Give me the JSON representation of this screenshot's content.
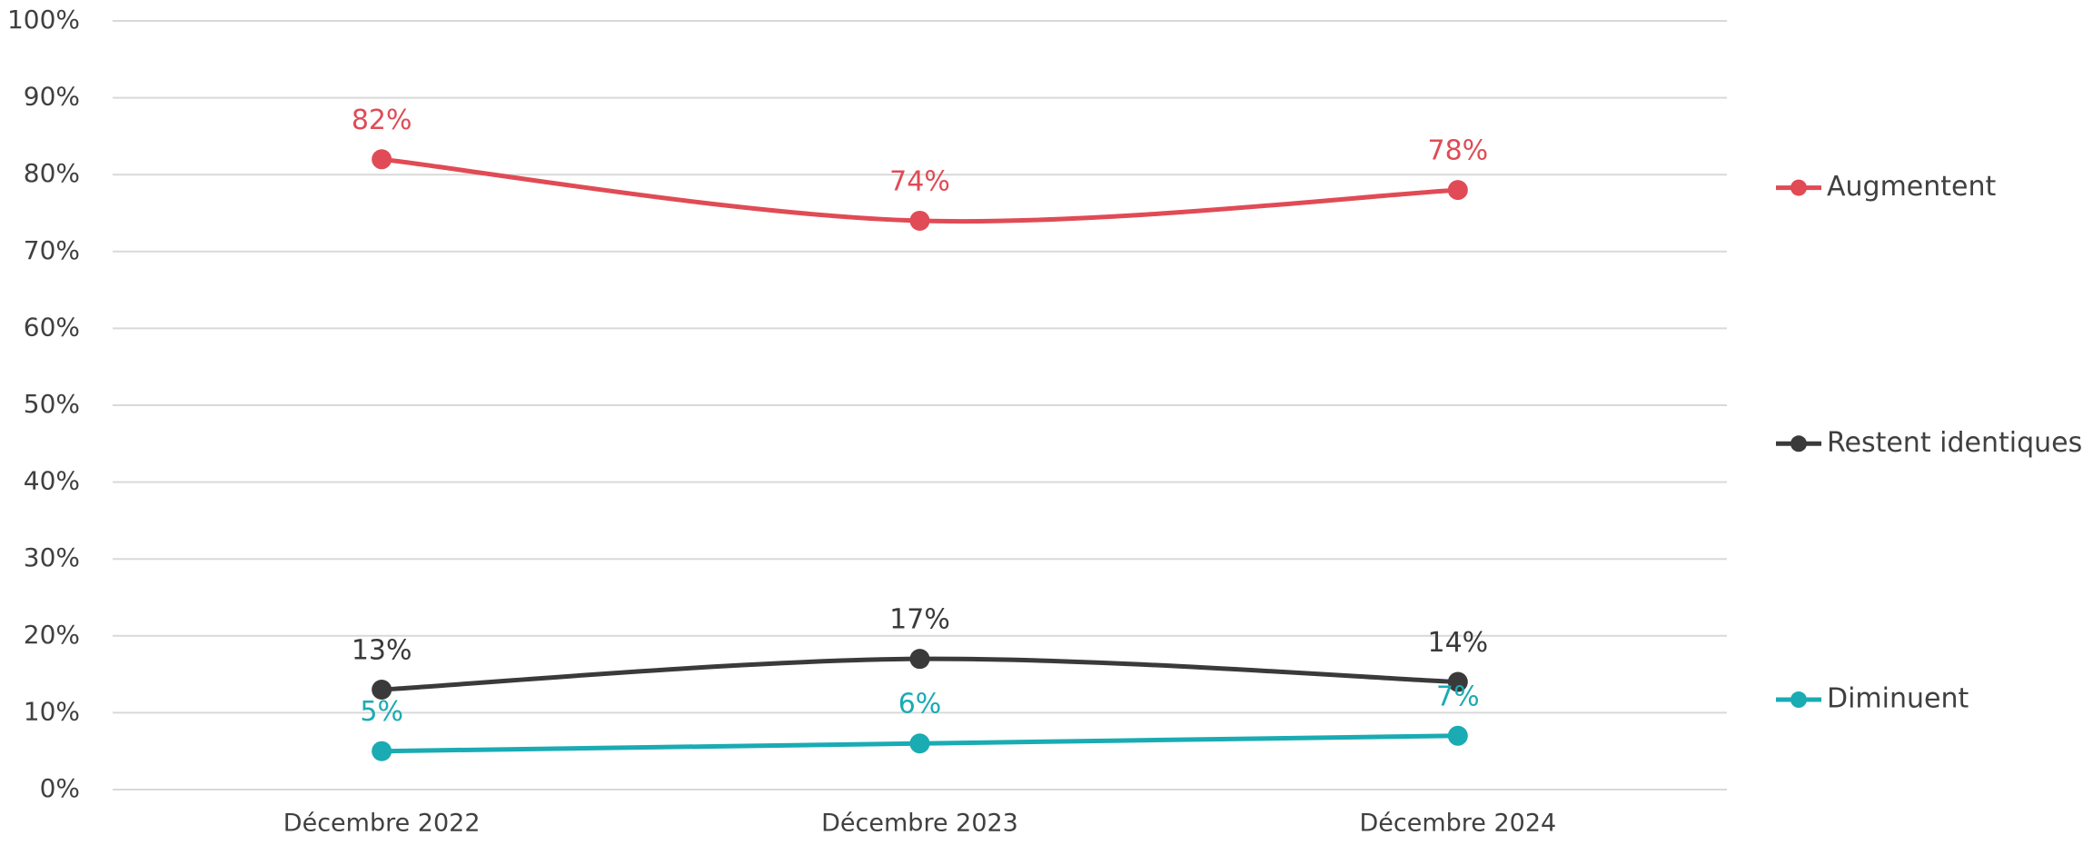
{
  "chart_data": {
    "type": "line",
    "categories": [
      "Décembre 2022",
      "Décembre 2023",
      "Décembre 2024"
    ],
    "series": [
      {
        "name": "Augmentent",
        "color": "#e04b55",
        "values": [
          82,
          74,
          78
        ],
        "value_labels": [
          "82%",
          "74%",
          "78%"
        ]
      },
      {
        "name": "Restent identiques",
        "color": "#3a3a3a",
        "values": [
          13,
          17,
          14
        ],
        "value_labels": [
          "13%",
          "17%",
          "14%"
        ]
      },
      {
        "name": "Diminuent",
        "color": "#1aabb3",
        "values": [
          5,
          6,
          7
        ],
        "value_labels": [
          "5%",
          "6%",
          "7%"
        ]
      }
    ],
    "ylim": [
      0,
      100
    ],
    "yticks": [
      {
        "value": 0,
        "label": "0%"
      },
      {
        "value": 10,
        "label": "10%"
      },
      {
        "value": 20,
        "label": "20%"
      },
      {
        "value": 30,
        "label": "30%"
      },
      {
        "value": 40,
        "label": "40%"
      },
      {
        "value": 50,
        "label": "50%"
      },
      {
        "value": 60,
        "label": "60%"
      },
      {
        "value": 70,
        "label": "70%"
      },
      {
        "value": 80,
        "label": "80%"
      },
      {
        "value": 90,
        "label": "90%"
      },
      {
        "value": 100,
        "label": "100%"
      }
    ],
    "grid": true,
    "smooth": true,
    "legend": "right"
  }
}
